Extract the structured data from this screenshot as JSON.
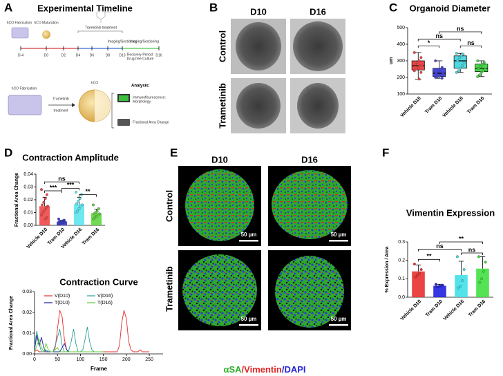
{
  "panels": [
    "A",
    "B",
    "C",
    "D",
    "E",
    "F"
  ],
  "timeline": {
    "title": "Experimental Timeline",
    "days": [
      "D-4",
      "D0",
      "D2",
      "D4",
      "D6",
      "D8",
      "D10",
      "D16"
    ],
    "fabrication": "hCO Fabrication",
    "maturation": "hCO Maturation",
    "treatment": "Trametinib treatment",
    "imaging": "Imaging/Sectioning",
    "recovery": [
      "Recovery Period:",
      "Drug-free Culture"
    ]
  },
  "workflow": {
    "fabrication": "hCO Fabrication",
    "treatment": [
      "Trametinib",
      "treatment"
    ],
    "product": "hCO",
    "analysis": "Analysis:",
    "immuno": [
      "Immunoflourescence:",
      "Morphology"
    ],
    "area": "Fractional Area Change"
  },
  "brightfield": {
    "columns": [
      "D10",
      "D16"
    ],
    "rows": [
      "Control",
      "Trametinib"
    ]
  },
  "immunofluorescence": {
    "columns": [
      "D10",
      "D16"
    ],
    "rows": [
      "Control",
      "Trametinib"
    ],
    "scale_bar": "50 µm",
    "stain": [
      {
        "text": "αSA",
        "color": "#2fae2f"
      },
      {
        "text": "/Vimentin",
        "color": "#e02424"
      },
      {
        "text": "/DAPI",
        "color": "#2424d8"
      }
    ]
  },
  "chart_data": [
    {
      "type": "box",
      "title": "Organoid Diameter",
      "ylabel": "um",
      "categories": [
        "Vehicle D10",
        "Tram D10",
        "Vehicle D16",
        "Tram D16"
      ],
      "colors": [
        "#f04848",
        "#4646dc",
        "#4fd8df",
        "#46d846"
      ],
      "boxes": [
        {
          "min": 190,
          "q1": 245,
          "median": 270,
          "q3": 300,
          "max": 350
        },
        {
          "min": 195,
          "q1": 205,
          "median": 225,
          "q3": 255,
          "max": 300
        },
        {
          "min": 230,
          "q1": 255,
          "median": 300,
          "q3": 330,
          "max": 345
        },
        {
          "min": 205,
          "q1": 235,
          "median": 255,
          "q3": 280,
          "max": 300
        }
      ],
      "points": [
        [
          350,
          320,
          300,
          290,
          280,
          275,
          270,
          260,
          250,
          240,
          230,
          190
        ],
        [
          300,
          260,
          250,
          235,
          225,
          220,
          215,
          210,
          205,
          200,
          195
        ],
        [
          345,
          340,
          330,
          320,
          300,
          290,
          270,
          255,
          240,
          230
        ],
        [
          300,
          290,
          280,
          265,
          255,
          250,
          240,
          230,
          215,
          205
        ]
      ],
      "ylim": [
        100,
        500
      ],
      "yticks": [
        100,
        200,
        300,
        400,
        500
      ],
      "annotations": [
        {
          "from": "Vehicle D10",
          "to": "Tram D10",
          "label": "*",
          "y": 390
        },
        {
          "from": "Vehicle D10",
          "to": "Vehicle D16",
          "label": "ns",
          "y": 430
        },
        {
          "from": "Vehicle D16",
          "to": "Tram D16",
          "label": "ns",
          "y": 390
        },
        {
          "from": "Tram D10",
          "to": "Tram D16",
          "label": "ns",
          "y": 475
        }
      ]
    },
    {
      "type": "bar",
      "title": "Contraction Amplitude",
      "ylabel": "Fractional Area Change",
      "categories": [
        "Vehicle D10",
        "Tram D10",
        "Vehicle D16",
        "Tram D16"
      ],
      "colors": [
        "#f04848",
        "#3c3cd0",
        "#5ee6ee",
        "#62d640"
      ],
      "values": [
        0.015,
        0.003,
        0.0165,
        0.0095
      ],
      "errors": [
        0.007,
        0.001,
        0.0055,
        0.003
      ],
      "points": [
        [
          0.028,
          0.024,
          0.021,
          0.018,
          0.016,
          0.015,
          0.014,
          0.012,
          0.01,
          0.008,
          0.006,
          0.005
        ],
        [
          0.005,
          0.004,
          0.0035,
          0.003,
          0.003,
          0.0025,
          0.002,
          0.002,
          0.0015,
          0.001
        ],
        [
          0.026,
          0.024,
          0.021,
          0.019,
          0.017,
          0.016,
          0.015,
          0.013,
          0.011,
          0.01
        ],
        [
          0.016,
          0.013,
          0.011,
          0.01,
          0.009,
          0.009,
          0.008,
          0.007,
          0.006,
          0.005
        ]
      ],
      "ylim": [
        0,
        0.04
      ],
      "yticks": [
        {
          "value": 0,
          "label": "0.00"
        },
        {
          "value": 0.01,
          "label": "0.01"
        },
        {
          "value": 0.02,
          "label": "0.02"
        },
        {
          "value": 0.03,
          "label": "0.03"
        },
        {
          "value": 0.04,
          "label": "0.04"
        }
      ],
      "annotations": [
        {
          "from": "Vehicle D10",
          "to": "Tram D10",
          "label": "***",
          "y": 0.027
        },
        {
          "from": "Tram D10",
          "to": "Vehicle D16",
          "label": "***",
          "y": 0.029
        },
        {
          "from": "Vehicle D16",
          "to": "Tram D16",
          "label": "**",
          "y": 0.024
        },
        {
          "from": "Vehicle D10",
          "to": "Vehicle D16",
          "label": "ns",
          "y": 0.034
        }
      ]
    },
    {
      "type": "line",
      "title": "Contraction Curve",
      "xlabel": "Frame",
      "ylabel": "Fractional Area Change",
      "x": [
        0,
        5,
        10,
        15,
        20,
        25,
        30,
        35,
        40,
        45,
        50,
        55,
        60,
        65,
        70,
        75,
        80,
        85,
        90,
        95,
        100,
        105,
        110,
        115,
        120,
        125,
        130,
        135,
        140,
        145,
        150,
        155,
        160,
        165,
        170,
        175,
        180,
        185,
        190,
        195,
        200,
        205,
        210,
        215,
        220,
        225,
        230,
        235,
        240,
        245,
        250
      ],
      "series": [
        {
          "name": "V(D10)",
          "color": "#e82828",
          "values": [
            0.001,
            0.002,
            0.001,
            0.001,
            0.001,
            0.001,
            0.001,
            0.001,
            0.001,
            0.003,
            0.012,
            0.021,
            0.018,
            0.007,
            0.002,
            0.001,
            0.001,
            0.001,
            0.001,
            0.001,
            0.001,
            0.001,
            0.001,
            0.001,
            0.001,
            0.001,
            0.001,
            0.001,
            0.001,
            0.001,
            0.001,
            0.001,
            0.001,
            0.001,
            0.001,
            0.001,
            0.001,
            0.004,
            0.015,
            0.021,
            0.017,
            0.006,
            0.002,
            0.001,
            0.001,
            0.001,
            0.002,
            0.001,
            0.001,
            0.001,
            0.001
          ]
        },
        {
          "name": "V(D16)",
          "color": "#2aa198",
          "values": [
            0.004,
            0.011,
            0.005,
            0.001,
            0.001,
            0.002,
            0.001,
            0.001,
            0.001,
            0.004,
            0.008,
            0.012,
            0.004,
            0.001,
            0.001,
            0.002,
            0.006,
            0.012,
            0.005,
            0.001,
            0.001,
            0.002,
            0.007,
            0.013,
            0.006,
            0.002,
            0.001,
            0.001,
            0.001,
            0.001,
            0.001,
            null,
            null,
            null,
            null,
            null,
            null,
            null,
            null,
            null,
            null,
            null,
            null,
            null,
            null,
            null,
            null,
            null,
            null,
            null,
            null
          ]
        },
        {
          "name": "T(D10)",
          "color": "#1c1c9c",
          "values": [
            0.002,
            0.009,
            0.004,
            0.008,
            0.003,
            0.001,
            0.001,
            0.001,
            0.001,
            0.001,
            0.001,
            0.001,
            0.003,
            0.005,
            0.002,
            0.001,
            0.001,
            0.001,
            0.001,
            0.001,
            0.001,
            0.001,
            0.001,
            0.001,
            0.001,
            0.001,
            0.001,
            0.001,
            0.001,
            0.001,
            0.001,
            null,
            null,
            null,
            null,
            null,
            null,
            null,
            null,
            null,
            null,
            null,
            null,
            null,
            null,
            null,
            null,
            null,
            null,
            null,
            null
          ]
        },
        {
          "name": "T(D16)",
          "color": "#5ccc3a",
          "values": [
            0.001,
            0.004,
            0.007,
            0.003,
            0.001,
            0.005,
            0.002,
            0.001,
            0.001,
            0.002,
            0.003,
            0.001,
            0.001,
            0.001,
            0.001,
            0.001,
            0.001,
            0.001,
            0.001,
            0.001,
            0.001,
            0.001,
            0.001,
            0.001,
            0.001,
            0.001,
            0.001,
            0.001,
            0.001,
            0.001,
            0.001,
            null,
            null,
            null,
            null,
            null,
            null,
            null,
            null,
            null,
            null,
            null,
            null,
            null,
            null,
            null,
            null,
            null,
            null,
            null,
            null
          ]
        }
      ],
      "xlim": [
        0,
        280
      ],
      "xticks": [
        0,
        50,
        100,
        150,
        200,
        250
      ],
      "ylim": [
        0,
        0.03
      ],
      "yticks": [
        {
          "value": 0,
          "label": "0.00"
        },
        {
          "value": 0.01,
          "label": "0.01"
        },
        {
          "value": 0.02,
          "label": "0.02"
        },
        {
          "value": 0.03,
          "label": "0.03"
        }
      ],
      "legend": "top-left"
    },
    {
      "type": "bar",
      "title": "Vimentin Expression",
      "ylabel": "% Expression / Area",
      "categories": [
        "Vehicle D10",
        "Tram D10",
        "Vehicle D16",
        "Tram D16"
      ],
      "colors": [
        "#e83030",
        "#2020e0",
        "#40e0e8",
        "#40e040"
      ],
      "values": [
        0.14,
        0.062,
        0.12,
        0.155
      ],
      "errors": [
        0.035,
        0.008,
        0.075,
        0.065
      ],
      "points": [
        [
          0.18,
          0.15,
          0.13,
          0.12,
          0.11
        ],
        [
          0.07,
          0.065,
          0.06,
          0.058,
          0.055
        ],
        [
          0.22,
          0.15,
          0.09,
          0.06,
          0.05
        ],
        [
          0.22,
          0.19,
          0.14,
          0.1,
          0.08
        ]
      ],
      "ylim": [
        0,
        0.3
      ],
      "yticks": [
        {
          "value": 0,
          "label": "0.0"
        },
        {
          "value": 0.1,
          "label": "0.1"
        },
        {
          "value": 0.2,
          "label": "0.2"
        },
        {
          "value": 0.3,
          "label": "0.3"
        }
      ],
      "annotations": [
        {
          "from": "Vehicle D10",
          "to": "Tram D10",
          "label": "**",
          "y": 0.205
        },
        {
          "from": "Vehicle D10",
          "to": "Vehicle D16",
          "label": "ns",
          "y": 0.26
        },
        {
          "from": "Vehicle D16",
          "to": "Tram D16",
          "label": "ns",
          "y": 0.24
        },
        {
          "from": "Tram D10",
          "to": "Tram D16",
          "label": "**",
          "y": 0.3
        }
      ]
    }
  ]
}
